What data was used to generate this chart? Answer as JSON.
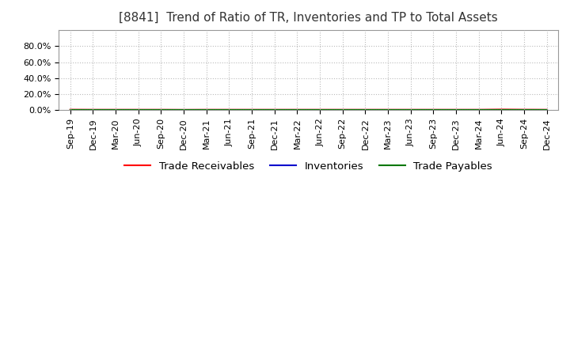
{
  "title": "[8841]  Trend of Ratio of TR, Inventories and TP to Total Assets",
  "x_labels": [
    "Sep-19",
    "Dec-19",
    "Mar-20",
    "Jun-20",
    "Sep-20",
    "Dec-20",
    "Mar-21",
    "Jun-21",
    "Sep-21",
    "Dec-21",
    "Mar-22",
    "Jun-22",
    "Sep-22",
    "Dec-22",
    "Mar-23",
    "Jun-23",
    "Sep-23",
    "Dec-23",
    "Mar-24",
    "Jun-24",
    "Sep-24",
    "Dec-24"
  ],
  "trade_receivables": [
    0.008,
    0.007,
    0.007,
    0.007,
    0.007,
    0.006,
    0.007,
    0.007,
    0.007,
    0.007,
    0.007,
    0.007,
    0.007,
    0.007,
    0.007,
    0.007,
    0.007,
    0.007,
    0.007,
    0.01,
    0.008,
    0.007
  ],
  "inventories": [
    0.002,
    0.002,
    0.002,
    0.002,
    0.002,
    0.002,
    0.002,
    0.002,
    0.002,
    0.002,
    0.002,
    0.002,
    0.002,
    0.002,
    0.002,
    0.002,
    0.002,
    0.002,
    0.002,
    0.002,
    0.002,
    0.002
  ],
  "trade_payables": [
    0.003,
    0.003,
    0.003,
    0.003,
    0.003,
    0.003,
    0.003,
    0.003,
    0.003,
    0.003,
    0.003,
    0.003,
    0.003,
    0.003,
    0.003,
    0.003,
    0.003,
    0.003,
    0.003,
    0.003,
    0.003,
    0.003
  ],
  "tr_color": "#ff0000",
  "inv_color": "#0000cc",
  "tp_color": "#007700",
  "ylim": [
    0.0,
    1.0
  ],
  "yticks": [
    0.0,
    0.2,
    0.4,
    0.6,
    0.8
  ],
  "ytick_labels": [
    "0.0%",
    "20.0%",
    "40.0%",
    "60.0%",
    "80.0%"
  ],
  "legend_labels": [
    "Trade Receivables",
    "Inventories",
    "Trade Payables"
  ],
  "background_color": "#ffffff",
  "plot_bg_color": "#ffffff",
  "grid_color": "#bbbbbb",
  "title_fontsize": 11,
  "title_color": "#333333",
  "tick_fontsize": 8,
  "legend_fontsize": 9.5
}
